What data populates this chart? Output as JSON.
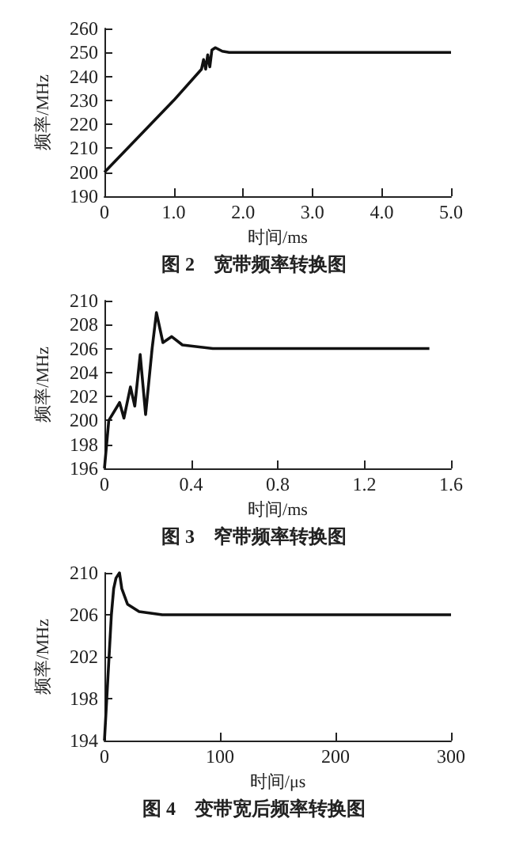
{
  "chart_data": [
    {
      "type": "line",
      "title": "图 2　宽带频率转换图",
      "xlabel": "时间/ms",
      "ylabel": "频率/MHz",
      "color": "#111111",
      "marker": "none",
      "line_style": "solid",
      "xlim": [
        0,
        5
      ],
      "xticks": [
        0,
        {
          "value": 1,
          "label": "1.0"
        },
        {
          "value": 2,
          "label": "2.0"
        },
        {
          "value": 3,
          "label": "3.0"
        },
        {
          "value": 4,
          "label": "4.0"
        },
        {
          "value": 5,
          "label": "5.0"
        }
      ],
      "ylim": [
        190,
        260
      ],
      "yticks": [
        190,
        200,
        210,
        220,
        230,
        240,
        250,
        260
      ],
      "x": [
        0,
        0.5,
        1.0,
        1.4,
        1.43,
        1.46,
        1.49,
        1.52,
        1.55,
        1.6,
        1.7,
        1.8,
        2.5,
        5.0
      ],
      "values": [
        200,
        215,
        230,
        243,
        247,
        243,
        249,
        244,
        251,
        252,
        250.5,
        250,
        250,
        250
      ]
    },
    {
      "type": "line",
      "title": "图 3　窄带频率转换图",
      "xlabel": "时间/ms",
      "ylabel": "频率/MHz",
      "color": "#111111",
      "marker": "none",
      "line_style": "solid",
      "xlim": [
        0,
        1.6
      ],
      "xticks": [
        0,
        0.4,
        0.8,
        1.2,
        1.6
      ],
      "ylim": [
        196,
        210
      ],
      "yticks": [
        196,
        198,
        200,
        202,
        204,
        206,
        208,
        210
      ],
      "x": [
        0,
        0.02,
        0.07,
        0.09,
        0.12,
        0.14,
        0.165,
        0.19,
        0.22,
        0.24,
        0.27,
        0.31,
        0.36,
        0.5,
        1.5
      ],
      "values": [
        196,
        200,
        201.5,
        200.2,
        202.8,
        201.2,
        205.5,
        200.5,
        206,
        209,
        206.5,
        207,
        206.3,
        206,
        206
      ]
    },
    {
      "type": "line",
      "title": "图 4　变带宽后频率转换图",
      "xlabel": "时间/μs",
      "ylabel": "频率/MHz",
      "color": "#111111",
      "marker": "none",
      "line_style": "solid",
      "xlim": [
        0,
        300
      ],
      "xticks": [
        0,
        100,
        200,
        300
      ],
      "ylim": [
        194,
        210
      ],
      "yticks": [
        194,
        198,
        202,
        206,
        210
      ],
      "x": [
        0,
        3,
        6,
        8,
        10,
        13,
        15,
        20,
        30,
        50,
        300
      ],
      "values": [
        194,
        200,
        206,
        208.5,
        209.5,
        210,
        208.5,
        207,
        206.3,
        206,
        206
      ]
    }
  ]
}
